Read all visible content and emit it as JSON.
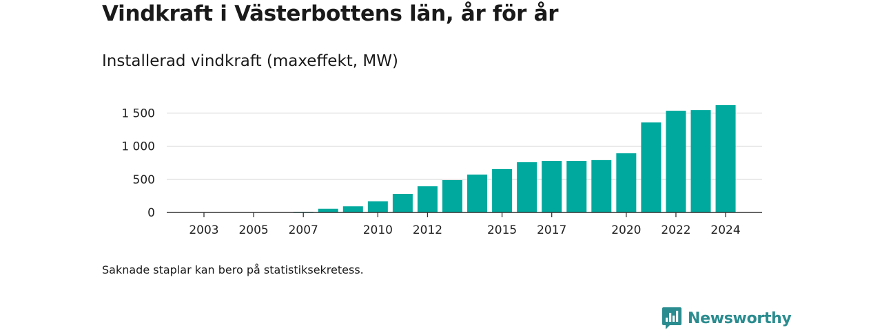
{
  "chart_data": {
    "type": "bar",
    "title": "Vindkraft i Västerbottens län, år för år",
    "subtitle": "Installerad vindkraft (maxeffekt, MW)",
    "categories": [
      "2003",
      "2004",
      "2005",
      "2006",
      "2007",
      "2008",
      "2009",
      "2010",
      "2011",
      "2012",
      "2013",
      "2014",
      "2015",
      "2016",
      "2017",
      "2018",
      "2019",
      "2020",
      "2021",
      "2022",
      "2023",
      "2024"
    ],
    "values": [
      1,
      1,
      1,
      2,
      10,
      55,
      92,
      168,
      280,
      395,
      488,
      572,
      655,
      758,
      778,
      778,
      790,
      893,
      1358,
      1535,
      1545,
      1620
    ],
    "xticks": [
      "2003",
      "2005",
      "2007",
      "2010",
      "2012",
      "2015",
      "2017",
      "2020",
      "2022",
      "2024"
    ],
    "yticks": [
      0,
      500,
      1000,
      1500
    ],
    "ytick_labels": [
      "0",
      "500",
      "1 000",
      "1 500"
    ],
    "ylim": [
      0,
      1650
    ],
    "xlabel": "",
    "ylabel": "",
    "grid": true,
    "bar_color": "#00a99d",
    "note": "Saknade staplar kan bero på statistiksekretess."
  },
  "brand": {
    "name": "Newsworthy",
    "icon": "newsworthy-logo-icon",
    "color": "#2a8c8f"
  }
}
